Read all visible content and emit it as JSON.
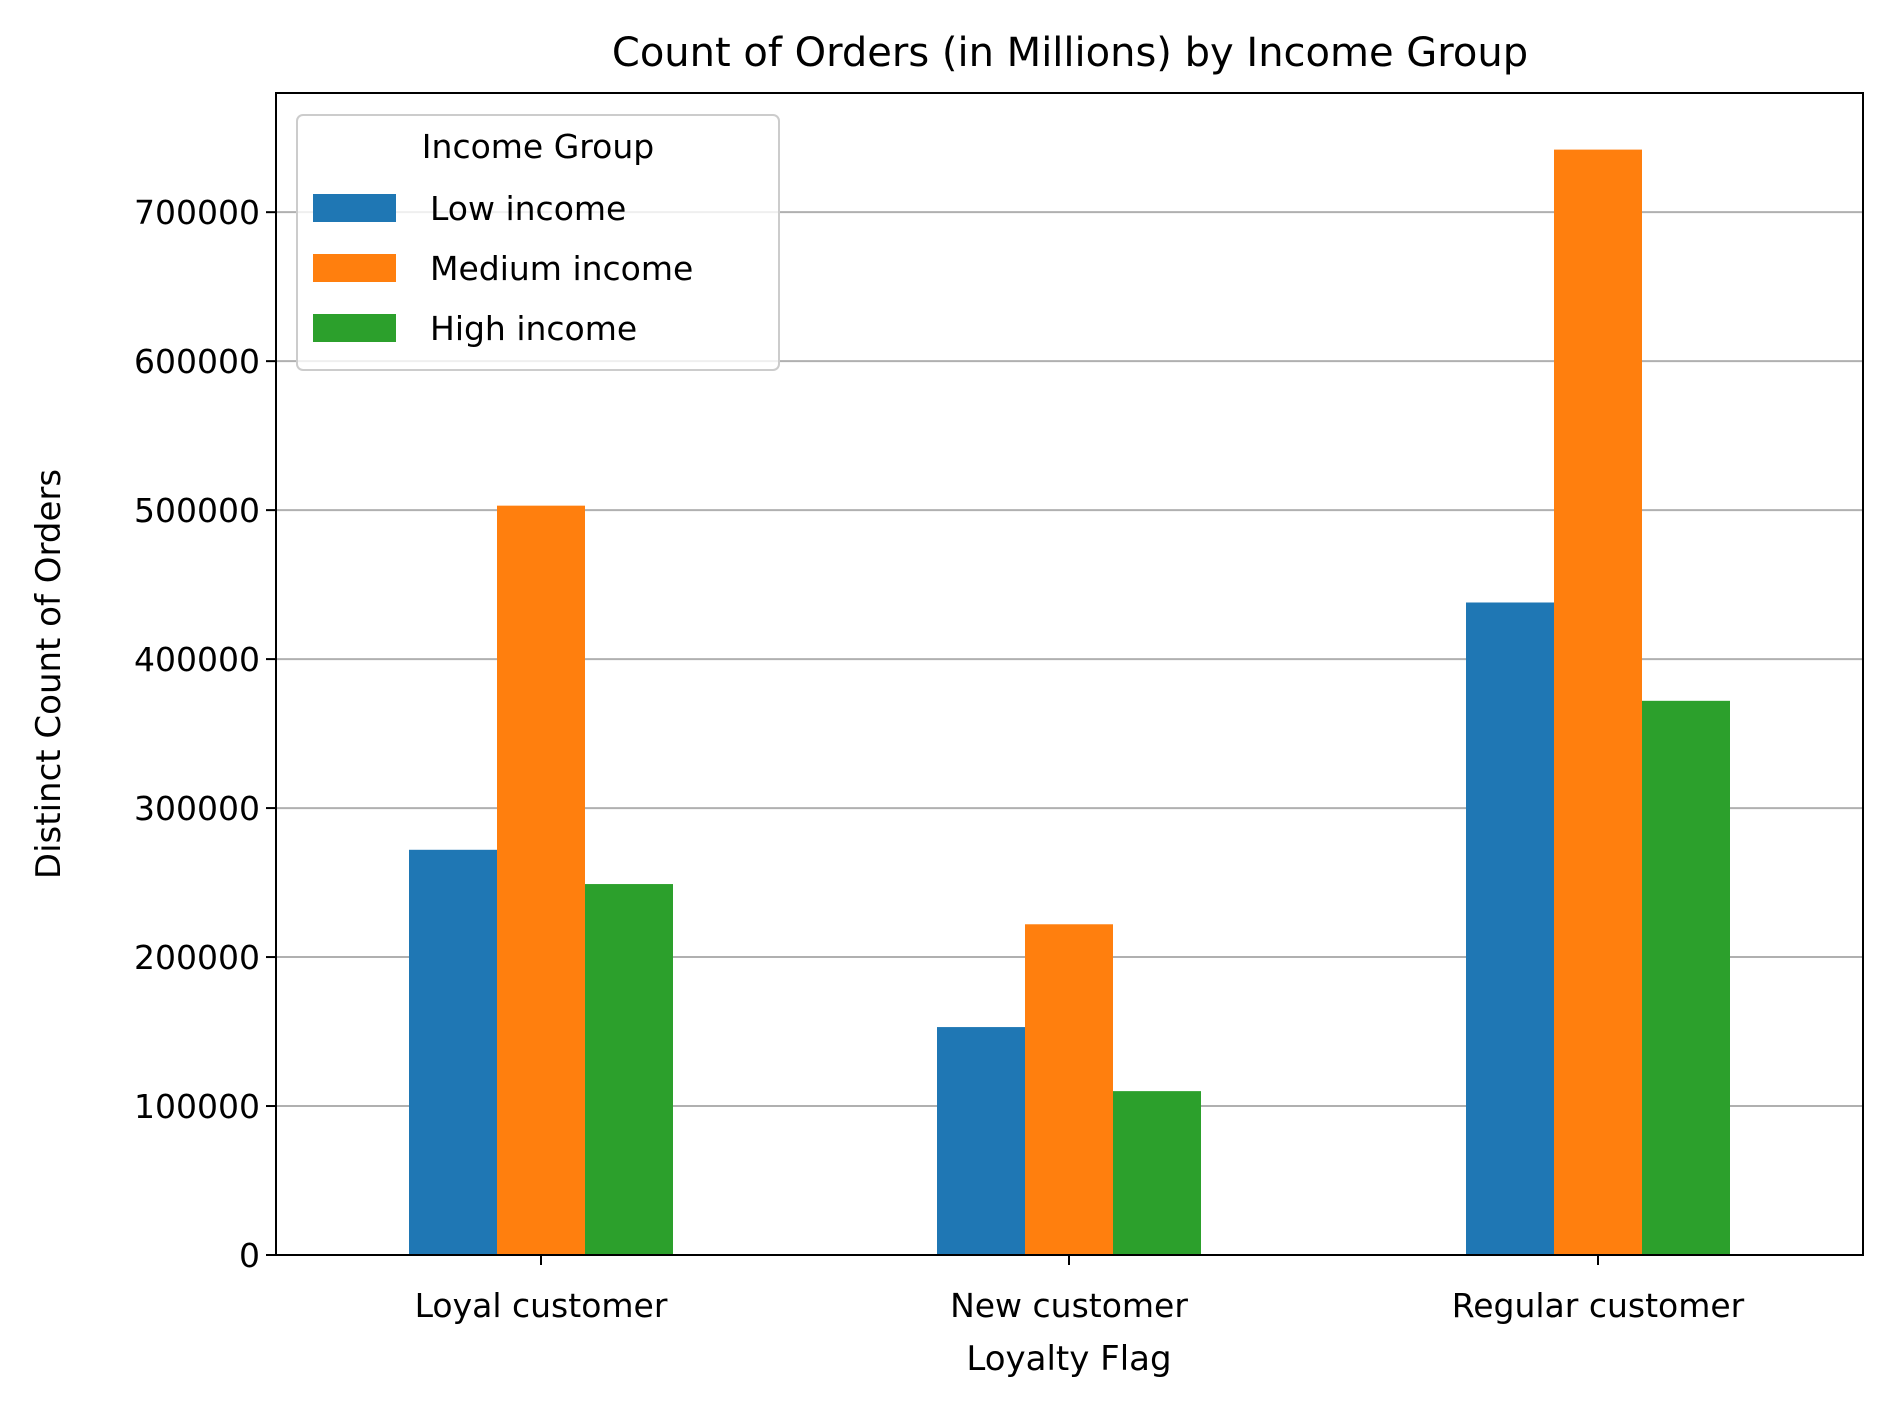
{
  "chart_data": {
    "type": "bar",
    "title": "Count of Orders (in Millions) by Income Group",
    "xlabel": "Loyalty Flag",
    "ylabel": "Distinct Count of Orders",
    "categories": [
      "Loyal customer",
      "New customer",
      "Regular customer"
    ],
    "series": [
      {
        "name": "Low income",
        "color": "#1f77b4",
        "values": [
          272000,
          153000,
          438000
        ]
      },
      {
        "name": "Medium income",
        "color": "#ff7f0e",
        "values": [
          503000,
          222000,
          742000
        ]
      },
      {
        "name": "High income",
        "color": "#2ca02c",
        "values": [
          249000,
          110000,
          372000
        ]
      }
    ],
    "ylim": [
      0,
      780000
    ],
    "yticks": [
      0,
      100000,
      200000,
      300000,
      400000,
      500000,
      600000,
      700000
    ],
    "ytick_labels": [
      "0",
      "100000",
      "200000",
      "300000",
      "400000",
      "500000",
      "600000",
      "700000"
    ],
    "grid": "y-axis horizontal lines",
    "legend": {
      "title": "Income Group",
      "placement": "top-left"
    }
  }
}
